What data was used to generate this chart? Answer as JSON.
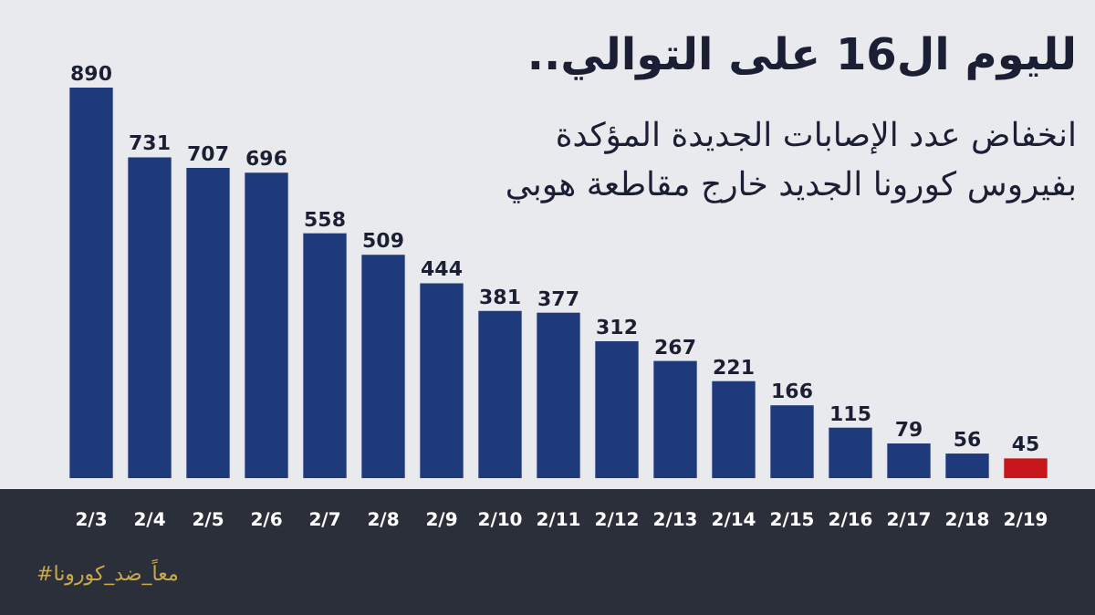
{
  "chart_data": {
    "type": "bar",
    "title": "لليوم ال16 على التوالي..",
    "subtitle": "انخفاض عدد الإصابات الجديدة المؤكدة\nبفيروس كورونا الجديد خارج مقاطعة هوبي",
    "annotations": [
      "#معاً_ضد_كورونا"
    ],
    "categories": [
      "2/3",
      "2/4",
      "2/5",
      "2/6",
      "2/7",
      "2/8",
      "2/9",
      "2/10",
      "2/11",
      "2/12",
      "2/13",
      "2/14",
      "2/15",
      "2/16",
      "2/17",
      "2/18",
      "2/19"
    ],
    "values": [
      890,
      731,
      707,
      696,
      558,
      509,
      444,
      381,
      377,
      312,
      267,
      221,
      166,
      115,
      79,
      56,
      45
    ],
    "colors": [
      "#1e3a7a",
      "#1e3a7a",
      "#1e3a7a",
      "#1e3a7a",
      "#1e3a7a",
      "#1e3a7a",
      "#1e3a7a",
      "#1e3a7a",
      "#1e3a7a",
      "#1e3a7a",
      "#1e3a7a",
      "#1e3a7a",
      "#1e3a7a",
      "#1e3a7a",
      "#1e3a7a",
      "#1e3a7a",
      "#c8161d"
    ],
    "data_labels": true
  }
}
